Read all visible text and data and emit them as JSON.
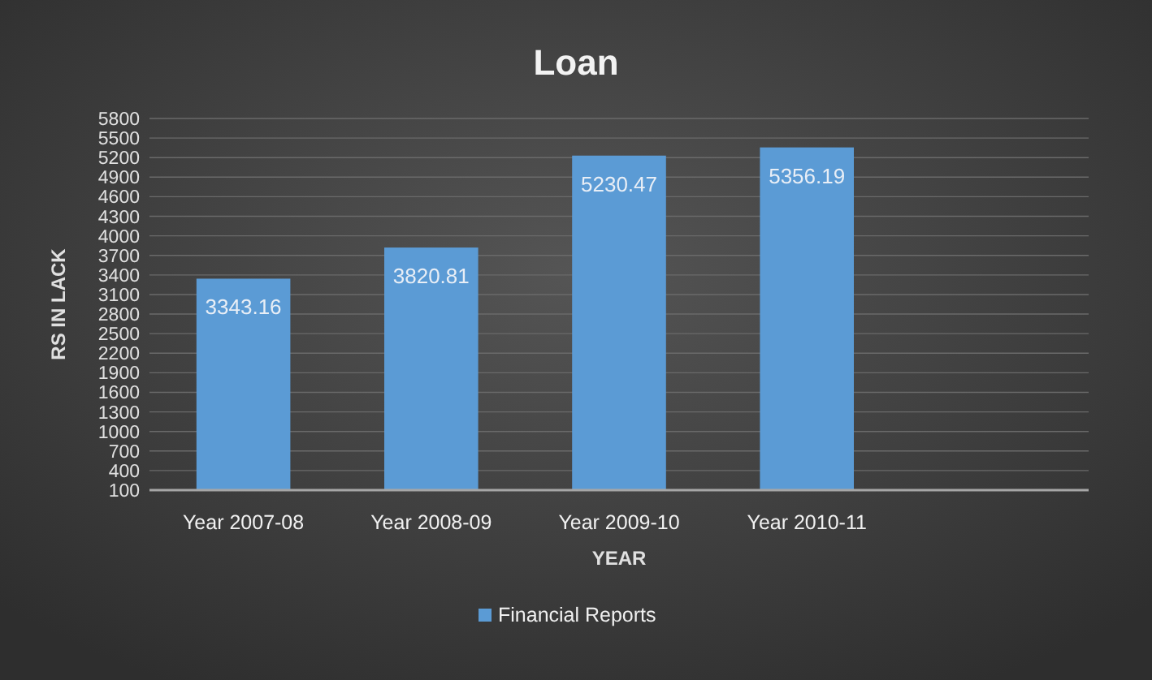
{
  "chart_data": {
    "type": "bar",
    "title": "Loan",
    "xlabel": "YEAR",
    "ylabel": "RS IN LACK",
    "categories": [
      "Year 2007-08",
      "Year 2008-09",
      "Year 2009-10",
      "Year 2010-11",
      null
    ],
    "series": [
      {
        "name": "Financial Reports",
        "color": "#5b9bd5",
        "values": [
          3343.16,
          3820.81,
          5230.47,
          5356.19,
          null
        ]
      }
    ],
    "ylim": [
      100,
      5800
    ],
    "yticks": [
      100,
      400,
      700,
      1000,
      1300,
      1600,
      1900,
      2200,
      2500,
      2800,
      3100,
      3400,
      3700,
      4000,
      4300,
      4600,
      4900,
      5200,
      5500,
      5800
    ],
    "grid": "y",
    "legend": "bottom",
    "data_labels": true
  }
}
